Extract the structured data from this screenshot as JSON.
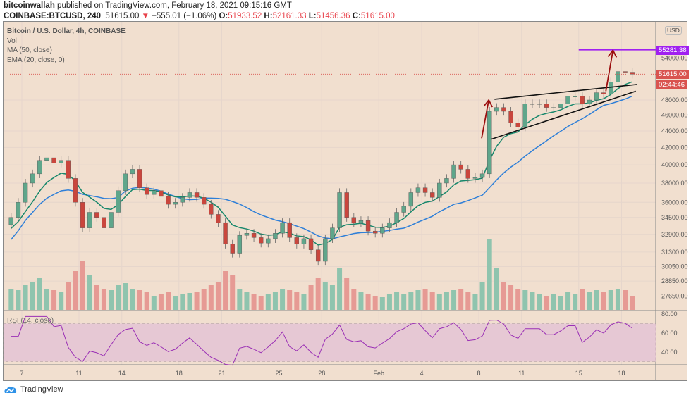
{
  "header": {
    "author": "bitcoinwallah",
    "published": "published on TradingView.com, February 18, 2021 09:15:16 GMT",
    "symbol": "COINBASE:BTCUSD, 240",
    "last": "51615.00",
    "change_arrow": "▼",
    "change": "−555.01 (−1.06%)",
    "o_label": "O:",
    "o": "51933.52",
    "h_label": "H:",
    "h": "52161.33",
    "l_label": "L:",
    "l": "51456.36",
    "c_label": "C:",
    "c": "51615.00"
  },
  "legend": {
    "title": "Bitcoin / U.S. Dollar, 4h, COINBASE",
    "vol": "Vol",
    "ma": "MA (50, close)",
    "ema": "EMA (20, close, 0)",
    "rsi": "RSI (14, close)"
  },
  "price_axis": {
    "currency": "USD",
    "scale": "log",
    "ticks": [
      "54000.00",
      "48000.00",
      "46000.00",
      "44000.00",
      "42000.00",
      "40000.00",
      "38000.00",
      "36000.00",
      "34500.00",
      "32900.00",
      "31300.00",
      "30050.00",
      "28850.00",
      "27650.00"
    ],
    "rsi_ticks": [
      "80.00",
      "60.00",
      "40.00"
    ],
    "resistance_label": "55281.38",
    "last_label": "51615.00",
    "countdown": "02:44:46"
  },
  "time_axis": {
    "labels": [
      {
        "t": "7",
        "day": 7
      },
      {
        "t": "11",
        "day": 11
      },
      {
        "t": "14",
        "day": 14
      },
      {
        "t": "18",
        "day": 18
      },
      {
        "t": "21",
        "day": 21
      },
      {
        "t": "25",
        "day": 25
      },
      {
        "t": "28",
        "day": 28
      },
      {
        "t": "Feb",
        "day": 32
      },
      {
        "t": "4",
        "day": 35
      },
      {
        "t": "8",
        "day": 39
      },
      {
        "t": "11",
        "day": 42
      },
      {
        "t": "15",
        "day": 46
      },
      {
        "t": "18",
        "day": 49
      }
    ]
  },
  "colors": {
    "up": "#5fa68b",
    "down": "#c9463d",
    "ema": "#16876b",
    "ma": "#2e7fd8",
    "rsi": "#9a2fb5",
    "resistance": "#a020f0",
    "arrow": "#9b0e0e",
    "last": "#d9534f",
    "background": "#f1dfcf"
  },
  "chart_data": {
    "type": "candlestick",
    "start_day": 6,
    "step_days": 0.5,
    "close": [
      34500,
      36000,
      38000,
      39000,
      40500,
      40800,
      40200,
      40500,
      38500,
      36000,
      33500,
      35000,
      34500,
      33500,
      35000,
      37200,
      39000,
      39500,
      37500,
      36800,
      37200,
      36600,
      35800,
      36000,
      36500,
      37000,
      36500,
      35800,
      34800,
      34000,
      32000,
      31200,
      32800,
      33000,
      32600,
      32100,
      32500,
      33000,
      34000,
      32600,
      32000,
      32500,
      31500,
      30500,
      32500,
      33500,
      37000,
      34500,
      34000,
      34200,
      33200,
      33000,
      33500,
      34000,
      35000,
      35600,
      37000,
      37500,
      37000,
      36500,
      38000,
      38500,
      40000,
      39500,
      38500,
      38600,
      39000,
      46500,
      47000,
      46500,
      45000,
      44500,
      47500,
      47500,
      47500,
      47000,
      47000,
      47500,
      48500,
      48500,
      47500,
      48000,
      49000,
      48800,
      50500,
      52000,
      51900,
      51615
    ],
    "volume": [
      30,
      28,
      35,
      40,
      45,
      30,
      28,
      25,
      40,
      55,
      70,
      50,
      35,
      30,
      28,
      35,
      38,
      30,
      28,
      25,
      20,
      22,
      25,
      20,
      22,
      24,
      25,
      30,
      35,
      40,
      55,
      50,
      30,
      25,
      22,
      20,
      22,
      25,
      30,
      28,
      25,
      22,
      35,
      45,
      40,
      35,
      60,
      45,
      30,
      25,
      22,
      20,
      18,
      22,
      25,
      22,
      25,
      28,
      30,
      25,
      22,
      25,
      28,
      30,
      25,
      22,
      40,
      100,
      60,
      40,
      35,
      30,
      28,
      25,
      22,
      20,
      22,
      20,
      25,
      22,
      30,
      25,
      28,
      25,
      28,
      30,
      28,
      20
    ],
    "indicators": [
      "MA (50, close)",
      "EMA (20, close, 0)",
      "RSI (14, close)"
    ],
    "resistance": 55281.38,
    "trendlines": [
      {
        "from": [
          40.1,
          48100
        ],
        "to": [
          50.1,
          50150
        ]
      },
      {
        "from": [
          39.9,
          43000
        ],
        "to": [
          50,
          49200
        ]
      }
    ],
    "arrows": [
      {
        "from": [
          39.2,
          43100
        ],
        "to": [
          39.7,
          48000
        ]
      },
      {
        "from": [
          47.9,
          49200
        ],
        "to": [
          48.4,
          55200
        ]
      }
    ],
    "rsi_band": [
      30,
      70
    ]
  }
}
